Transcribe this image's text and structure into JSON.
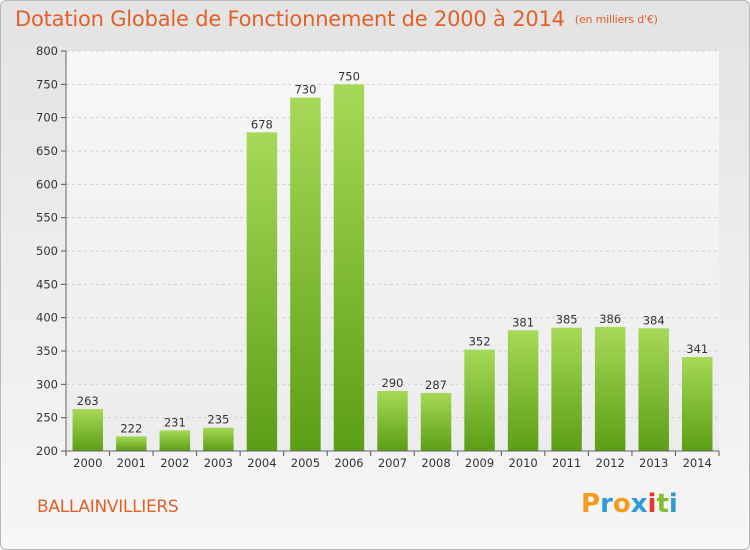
{
  "header": {
    "title": "Dotation Globale de Fonctionnement de 2000 à 2014",
    "unit": "(en milliers d'€)"
  },
  "footer": {
    "commune": "BALLAINVILLIERS",
    "logo": [
      "P",
      "r",
      "o",
      "x",
      "i",
      "t",
      "i"
    ]
  },
  "colors": {
    "title": "#e0612a",
    "bar_top": "#a6d957",
    "bar_bottom": "#5c9e16",
    "logo": [
      "#f39b1f",
      "#2f9bd8",
      "#f39b1f",
      "#2f9bd8",
      "#e8342a",
      "#86bf2b",
      "#2f9bd8"
    ]
  },
  "chart_data": {
    "type": "bar",
    "title": "Dotation Globale de Fonctionnement de 2000 à 2014",
    "subtitle": "(en milliers d'€)",
    "categories": [
      "2000",
      "2001",
      "2002",
      "2003",
      "2004",
      "2005",
      "2006",
      "2007",
      "2008",
      "2009",
      "2010",
      "2011",
      "2012",
      "2013",
      "2014"
    ],
    "values": [
      263,
      222,
      231,
      235,
      678,
      730,
      750,
      290,
      287,
      352,
      381,
      385,
      386,
      384,
      341
    ],
    "data_labels": [
      "263",
      "222",
      "231",
      "235",
      "678",
      "730",
      "750",
      "290",
      "287",
      "352",
      "381",
      "385",
      "386",
      "384",
      "341"
    ],
    "ylim": [
      200,
      800
    ],
    "yticks": [
      200,
      250,
      300,
      350,
      400,
      450,
      500,
      550,
      600,
      650,
      700,
      750,
      800
    ],
    "grid": true,
    "legend": "none"
  }
}
